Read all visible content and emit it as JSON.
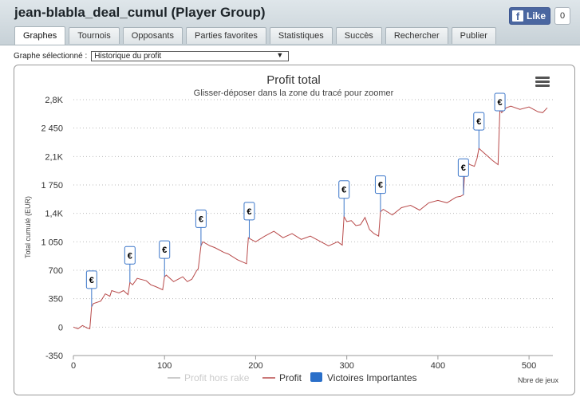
{
  "window": {
    "title": "jean-blabla_deal_cumul (Player Group)"
  },
  "facebook": {
    "like_label": "Like",
    "count": "0"
  },
  "tabs": [
    "Graphes",
    "Tournois",
    "Opposants",
    "Parties favorites",
    "Statistiques",
    "Succès",
    "Rechercher",
    "Publier"
  ],
  "graph_select": {
    "label": "Graphe sélectionné :",
    "value": "Historique du profit"
  },
  "colors": {
    "profit_line": "#b84a4a",
    "victoires": "#2a6fc9",
    "hors_rake": "#cccccc"
  },
  "chart_data": {
    "type": "line",
    "title": "Profit total",
    "subtitle": "Glisser-déposer dans la zone du tracé pour zoomer",
    "ylabel": "Total cumulé (EUR)",
    "xlabel": "Nbre de jeux",
    "ylim": [
      -350,
      2800
    ],
    "xlim": [
      0,
      525
    ],
    "y_ticks": [
      -350,
      0,
      350,
      700,
      1050,
      1400,
      1750,
      2100,
      2450,
      2800
    ],
    "y_tick_labels": [
      "-350",
      "0",
      "350",
      "700",
      "1 050",
      "1,4K",
      "1 750",
      "2,1K",
      "2 450",
      "2,8K"
    ],
    "x_ticks": [
      0,
      100,
      200,
      300,
      400,
      500
    ],
    "x_tick_labels": [
      "0",
      "100",
      "200",
      "300",
      "400",
      "500"
    ],
    "grid": true,
    "legend": [
      "Profit hors rake",
      "Profit",
      "Victoires Importantes"
    ],
    "legend_placement": "bottom",
    "series": [
      {
        "name": "Profit",
        "x": [
          0,
          5,
          10,
          15,
          18,
          20,
          22,
          30,
          35,
          40,
          42,
          50,
          55,
          60,
          62,
          65,
          70,
          80,
          85,
          90,
          98,
          100,
          102,
          110,
          115,
          120,
          125,
          130,
          135,
          137,
          140,
          142,
          150,
          155,
          160,
          165,
          170,
          180,
          190,
          192,
          195,
          200,
          210,
          220,
          230,
          240,
          250,
          260,
          270,
          280,
          290,
          295,
          297,
          300,
          305,
          310,
          315,
          320,
          325,
          330,
          335,
          337,
          340,
          350,
          360,
          370,
          380,
          390,
          400,
          410,
          420,
          425,
          428,
          430,
          435,
          440,
          443,
          445,
          450,
          455,
          460,
          466,
          468,
          470,
          475,
          480,
          490,
          500,
          510,
          515,
          520
        ],
        "y": [
          0,
          -20,
          20,
          -10,
          -20,
          250,
          290,
          320,
          410,
          380,
          450,
          420,
          450,
          400,
          550,
          520,
          600,
          570,
          520,
          500,
          460,
          620,
          640,
          560,
          590,
          620,
          560,
          590,
          690,
          720,
          1000,
          1050,
          1000,
          980,
          950,
          920,
          900,
          830,
          780,
          1100,
          1080,
          1050,
          1120,
          1180,
          1100,
          1150,
          1080,
          1120,
          1060,
          1000,
          1050,
          1010,
          1360,
          1300,
          1310,
          1250,
          1260,
          1350,
          1200,
          1150,
          1120,
          1420,
          1450,
          1380,
          1470,
          1500,
          1440,
          1530,
          1560,
          1530,
          1600,
          1610,
          1630,
          2050,
          2000,
          1980,
          2080,
          2200,
          2150,
          2100,
          2050,
          2000,
          2680,
          2640,
          2700,
          2720,
          2680,
          2710,
          2650,
          2640,
          2700
        ]
      }
    ],
    "victoires_markers": [
      {
        "x": 20,
        "label": "€"
      },
      {
        "x": 62,
        "label": "€"
      },
      {
        "x": 100,
        "label": "€"
      },
      {
        "x": 140,
        "label": "€"
      },
      {
        "x": 193,
        "label": "€"
      },
      {
        "x": 297,
        "label": "€"
      },
      {
        "x": 337,
        "label": "€"
      },
      {
        "x": 428,
        "label": "€"
      },
      {
        "x": 445,
        "label": "€"
      },
      {
        "x": 468,
        "label": "€"
      }
    ]
  }
}
